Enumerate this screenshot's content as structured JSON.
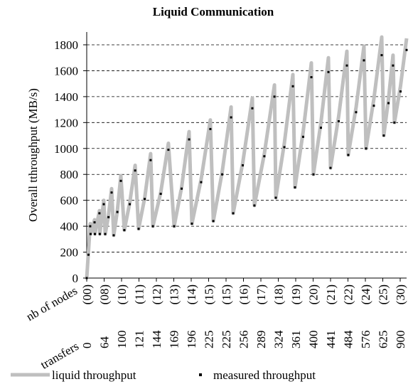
{
  "chart_data": {
    "type": "line",
    "title": "Liquid Communication",
    "ylabel": "Overall tthroughput (MB/s)",
    "x_rows": [
      {
        "label": "nb of nodes",
        "categories": [
          "(00)",
          "(08)",
          "(10)",
          "(11)",
          "(12)",
          "(13)",
          "(14)",
          "(15)",
          "(15)",
          "(16)",
          "(17)",
          "(18)",
          "(19)",
          "(20)",
          "(21)",
          "(22)",
          "(24)",
          "(25)",
          "(30)"
        ]
      },
      {
        "label": "transfers",
        "categories": [
          "0",
          "64",
          "100",
          "121",
          "144",
          "169",
          "196",
          "225",
          "225",
          "256",
          "289",
          "324",
          "361",
          "400",
          "441",
          "484",
          "576",
          "625",
          "900"
        ]
      }
    ],
    "xlim": [
      0,
      18.37
    ],
    "ylim": [
      0,
      1900
    ],
    "yticks": [
      0,
      200,
      400,
      600,
      800,
      1000,
      1200,
      1400,
      1600,
      1800
    ],
    "grid": true,
    "x": [
      0,
      0.1,
      0.2,
      0.22,
      0.45,
      0.47,
      0.73,
      0.75,
      0.98,
      1.06,
      1.25,
      1.43,
      1.55,
      1.76,
      1.96,
      2.16,
      2.47,
      2.78,
      2.98,
      3.33,
      3.67,
      3.8,
      4.25,
      4.69,
      5.02,
      5.45,
      5.88,
      6.04,
      6.57,
      7.1,
      7.27,
      7.78,
      8.29,
      8.41,
      8.96,
      9.51,
      9.63,
      10.2,
      10.78,
      10.86,
      11.35,
      11.84,
      11.96,
      12.43,
      12.9,
      13.02,
      13.45,
      13.88,
      14.0,
      14.47,
      14.94,
      15.02,
      15.47,
      15.92,
      16.04,
      16.49,
      16.94,
      17.06,
      17.33,
      17.59,
      17.67,
      18.02,
      18.37
    ],
    "series": [
      {
        "name": "liquid throughput",
        "color": "#bfbfbf",
        "style": "line",
        "values": [
          0,
          200,
          420,
          340,
          450,
          340,
          520,
          340,
          600,
          340,
          480,
          690,
          330,
          520,
          790,
          370,
          580,
          870,
          380,
          620,
          960,
          400,
          660,
          1040,
          400,
          700,
          1130,
          420,
          760,
          1220,
          440,
          820,
          1320,
          500,
          890,
          1390,
          560,
          960,
          1490,
          620,
          1040,
          1570,
          700,
          1130,
          1660,
          800,
          1200,
          1700,
          850,
          1250,
          1750,
          950,
          1320,
          1790,
          1000,
          1380,
          1860,
          1100,
          1380,
          1720,
          1200,
          1480,
          1850
        ]
      },
      {
        "name": "measured throughput",
        "color": "#000000",
        "style": "dots",
        "values": [
          0,
          180,
          400,
          340,
          430,
          340,
          500,
          340,
          570,
          340,
          470,
          660,
          330,
          510,
          750,
          370,
          570,
          830,
          380,
          610,
          910,
          400,
          650,
          990,
          400,
          690,
          1070,
          420,
          740,
          1150,
          440,
          800,
          1240,
          500,
          870,
          1310,
          560,
          940,
          1400,
          620,
          1010,
          1480,
          700,
          1090,
          1550,
          800,
          1160,
          1590,
          850,
          1210,
          1640,
          950,
          1280,
          1680,
          1000,
          1330,
          1720,
          1100,
          1350,
          1640,
          1200,
          1440,
          1760
        ]
      }
    ]
  }
}
